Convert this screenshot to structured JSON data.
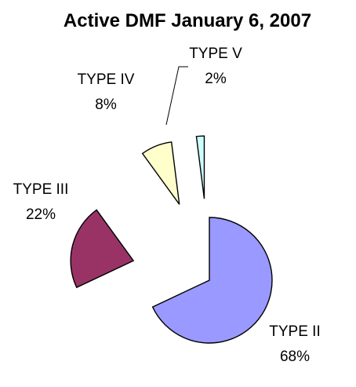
{
  "chart_data": {
    "type": "pie",
    "title": "Active DMF January 6, 2007",
    "exploded": true,
    "slices": [
      {
        "label": "TYPE II",
        "percent_label": "68%",
        "value": 68,
        "color": "#9999FF"
      },
      {
        "label": "TYPE III",
        "percent_label": "22%",
        "value": 22,
        "color": "#993366"
      },
      {
        "label": "TYPE IV",
        "percent_label": "8%",
        "value": 8,
        "color": "#FFFFCC"
      },
      {
        "label": "TYPE V",
        "percent_label": "2%",
        "value": 2,
        "color": "#CCFFFF"
      }
    ]
  }
}
